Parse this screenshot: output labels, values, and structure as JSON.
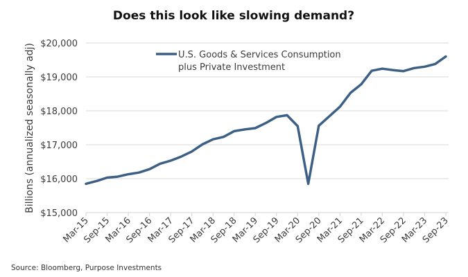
{
  "chart_data": {
    "type": "line",
    "title": "Does this look like slowing demand?",
    "xlabel": "",
    "ylabel": "Billions (annualized seasonally adj)",
    "ylim": [
      15000,
      20000
    ],
    "yticks": [
      15000,
      16000,
      17000,
      18000,
      19000,
      20000
    ],
    "ytick_labels": [
      "$15,000",
      "$16,000",
      "$17,000",
      "$18,000",
      "$19,000",
      "$20,000"
    ],
    "grid": true,
    "legend_position": "top-center",
    "x": [
      "Mar-15",
      "Jun-15",
      "Sep-15",
      "Dec-15",
      "Mar-16",
      "Jun-16",
      "Sep-16",
      "Dec-16",
      "Mar-17",
      "Jun-17",
      "Sep-17",
      "Dec-17",
      "Mar-18",
      "Jun-18",
      "Sep-18",
      "Dec-18",
      "Mar-19",
      "Jun-19",
      "Sep-19",
      "Dec-19",
      "Mar-20",
      "Jun-20",
      "Sep-20",
      "Dec-20",
      "Mar-21",
      "Jun-21",
      "Sep-21",
      "Dec-21",
      "Mar-22",
      "Jun-22",
      "Sep-22",
      "Dec-22",
      "Mar-23",
      "Jun-23",
      "Sep-23"
    ],
    "xtick_labels": [
      "Mar-15",
      "Sep-15",
      "Mar-16",
      "Sep-16",
      "Mar-17",
      "Sep-17",
      "Mar-18",
      "Sep-18",
      "Mar-19",
      "Sep-19",
      "Mar-20",
      "Sep-20",
      "Mar-21",
      "Sep-21",
      "Mar-22",
      "Sep-22",
      "Mar-23",
      "Sep-23"
    ],
    "series": [
      {
        "name": "U.S. Goods & Services Consumption plus Private Investment",
        "legend_lines": [
          "U.S. Goods & Services Consumption",
          "plus Private Investment"
        ],
        "color": "#3c5f85",
        "values": [
          15850,
          15930,
          16030,
          16060,
          16130,
          16180,
          16280,
          16440,
          16530,
          16650,
          16800,
          17010,
          17160,
          17230,
          17400,
          17450,
          17490,
          17640,
          17820,
          17870,
          17550,
          15850,
          17560,
          17840,
          18120,
          18530,
          18780,
          19180,
          19240,
          19200,
          19170,
          19260,
          19300,
          19380,
          19600
        ]
      }
    ],
    "source": "Source: Bloomberg, Purpose Investments"
  }
}
